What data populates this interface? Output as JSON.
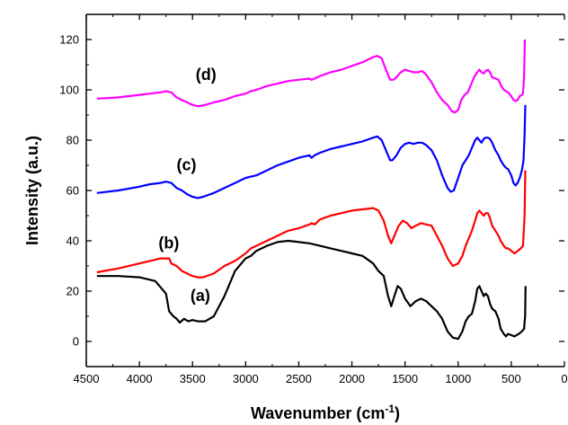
{
  "chart_data": {
    "type": "line",
    "title": "",
    "xlabel_main": "Wavenumber (cm",
    "xlabel_sup": "-1",
    "xlabel_close": ")",
    "ylabel": "Intensity (a.u.)",
    "xlim": [
      4500,
      0
    ],
    "ylim": [
      -10,
      130
    ],
    "x_ticks": [
      4500,
      4000,
      3500,
      3000,
      2500,
      2000,
      1500,
      1000,
      500,
      0
    ],
    "x_tick_labels": [
      "4500",
      "4000",
      "3500",
      "3000",
      "2500",
      "2000",
      "1500",
      "1000",
      "500",
      "0"
    ],
    "y_ticks": [
      0,
      20,
      40,
      60,
      80,
      100,
      120
    ],
    "y_tick_labels": [
      "0",
      "20",
      "40",
      "60",
      "80",
      "100",
      "120"
    ],
    "grid": false,
    "legend": "none",
    "series": [
      {
        "label": "(a)",
        "color": "#000000",
        "label_pos": [
          3520,
          16
        ],
        "points": [
          [
            4400,
            26
          ],
          [
            4200,
            26
          ],
          [
            4000,
            25.5
          ],
          [
            3850,
            24
          ],
          [
            3750,
            19
          ],
          [
            3720,
            12
          ],
          [
            3680,
            10
          ],
          [
            3650,
            9
          ],
          [
            3620,
            7.5
          ],
          [
            3580,
            9
          ],
          [
            3540,
            8
          ],
          [
            3500,
            8.5
          ],
          [
            3450,
            8
          ],
          [
            3380,
            8
          ],
          [
            3300,
            10
          ],
          [
            3200,
            18
          ],
          [
            3100,
            28
          ],
          [
            3000,
            33
          ],
          [
            2950,
            34
          ],
          [
            2900,
            36
          ],
          [
            2800,
            38
          ],
          [
            2700,
            39.5
          ],
          [
            2600,
            40
          ],
          [
            2500,
            39.5
          ],
          [
            2400,
            39
          ],
          [
            2300,
            38
          ],
          [
            2200,
            37
          ],
          [
            2100,
            36
          ],
          [
            2000,
            35
          ],
          [
            1900,
            34
          ],
          [
            1800,
            31
          ],
          [
            1750,
            28
          ],
          [
            1700,
            26
          ],
          [
            1660,
            18
          ],
          [
            1630,
            14
          ],
          [
            1600,
            18
          ],
          [
            1570,
            22
          ],
          [
            1540,
            21
          ],
          [
            1500,
            17
          ],
          [
            1450,
            14
          ],
          [
            1400,
            16
          ],
          [
            1350,
            17
          ],
          [
            1300,
            16
          ],
          [
            1250,
            14
          ],
          [
            1200,
            12
          ],
          [
            1150,
            9
          ],
          [
            1100,
            4
          ],
          [
            1050,
            1.5
          ],
          [
            1000,
            1
          ],
          [
            960,
            4
          ],
          [
            930,
            8
          ],
          [
            900,
            10
          ],
          [
            870,
            11
          ],
          [
            840,
            16
          ],
          [
            820,
            21
          ],
          [
            800,
            22
          ],
          [
            780,
            20
          ],
          [
            760,
            18
          ],
          [
            740,
            19
          ],
          [
            720,
            18
          ],
          [
            700,
            15
          ],
          [
            680,
            13
          ],
          [
            650,
            12
          ],
          [
            620,
            9
          ],
          [
            600,
            5
          ],
          [
            570,
            3
          ],
          [
            550,
            2
          ],
          [
            530,
            3
          ],
          [
            500,
            2.5
          ],
          [
            470,
            2
          ],
          [
            430,
            3
          ],
          [
            400,
            4
          ],
          [
            380,
            5
          ],
          [
            370,
            10
          ],
          [
            365,
            22
          ]
        ]
      },
      {
        "label": "(b)",
        "color": "#ff0000",
        "label_pos": [
          3820,
          37
        ],
        "points": [
          [
            4400,
            27.5
          ],
          [
            4200,
            29
          ],
          [
            4000,
            31
          ],
          [
            3900,
            32
          ],
          [
            3800,
            33
          ],
          [
            3720,
            33
          ],
          [
            3700,
            31
          ],
          [
            3650,
            30
          ],
          [
            3600,
            28
          ],
          [
            3500,
            26
          ],
          [
            3450,
            25.5
          ],
          [
            3400,
            25.5
          ],
          [
            3300,
            27
          ],
          [
            3200,
            30
          ],
          [
            3100,
            32
          ],
          [
            3000,
            35
          ],
          [
            2950,
            37
          ],
          [
            2900,
            38
          ],
          [
            2800,
            40
          ],
          [
            2700,
            42
          ],
          [
            2600,
            44
          ],
          [
            2500,
            45
          ],
          [
            2400,
            46.5
          ],
          [
            2380,
            47
          ],
          [
            2350,
            46.5
          ],
          [
            2300,
            48.5
          ],
          [
            2200,
            50
          ],
          [
            2100,
            51
          ],
          [
            2000,
            52
          ],
          [
            1900,
            52.5
          ],
          [
            1800,
            53
          ],
          [
            1750,
            52
          ],
          [
            1700,
            48
          ],
          [
            1660,
            42
          ],
          [
            1630,
            39
          ],
          [
            1600,
            42
          ],
          [
            1560,
            46
          ],
          [
            1520,
            48
          ],
          [
            1480,
            47
          ],
          [
            1440,
            45
          ],
          [
            1400,
            46
          ],
          [
            1350,
            47
          ],
          [
            1300,
            46.5
          ],
          [
            1250,
            46
          ],
          [
            1200,
            42
          ],
          [
            1150,
            38
          ],
          [
            1100,
            33
          ],
          [
            1050,
            30
          ],
          [
            1000,
            31
          ],
          [
            960,
            34
          ],
          [
            930,
            38
          ],
          [
            900,
            41
          ],
          [
            870,
            44
          ],
          [
            840,
            48
          ],
          [
            820,
            51
          ],
          [
            800,
            52
          ],
          [
            780,
            51
          ],
          [
            760,
            50
          ],
          [
            740,
            51
          ],
          [
            720,
            51
          ],
          [
            700,
            49
          ],
          [
            680,
            46
          ],
          [
            650,
            44
          ],
          [
            620,
            42
          ],
          [
            600,
            40
          ],
          [
            570,
            38
          ],
          [
            550,
            37
          ],
          [
            530,
            37
          ],
          [
            500,
            36
          ],
          [
            470,
            35
          ],
          [
            440,
            36
          ],
          [
            410,
            37
          ],
          [
            390,
            38
          ],
          [
            375,
            50
          ],
          [
            368,
            68
          ]
        ]
      },
      {
        "label": "(c)",
        "color": "#0000ff",
        "label_pos": [
          3650,
          68
        ],
        "points": [
          [
            4400,
            59
          ],
          [
            4200,
            60
          ],
          [
            4000,
            61.5
          ],
          [
            3900,
            62.5
          ],
          [
            3800,
            63
          ],
          [
            3750,
            63.5
          ],
          [
            3700,
            63
          ],
          [
            3650,
            61
          ],
          [
            3600,
            60
          ],
          [
            3550,
            58.5
          ],
          [
            3500,
            57.5
          ],
          [
            3450,
            57
          ],
          [
            3400,
            57.5
          ],
          [
            3300,
            59
          ],
          [
            3200,
            61
          ],
          [
            3100,
            63
          ],
          [
            3000,
            65
          ],
          [
            2950,
            65.5
          ],
          [
            2900,
            66
          ],
          [
            2800,
            68
          ],
          [
            2700,
            70
          ],
          [
            2600,
            71.5
          ],
          [
            2500,
            73
          ],
          [
            2400,
            74
          ],
          [
            2380,
            73
          ],
          [
            2350,
            74
          ],
          [
            2300,
            75
          ],
          [
            2200,
            76.5
          ],
          [
            2100,
            77.5
          ],
          [
            2000,
            78.5
          ],
          [
            1900,
            79.5
          ],
          [
            1800,
            81
          ],
          [
            1760,
            81.5
          ],
          [
            1720,
            80
          ],
          [
            1680,
            76
          ],
          [
            1640,
            72
          ],
          [
            1620,
            72
          ],
          [
            1580,
            74
          ],
          [
            1540,
            77
          ],
          [
            1500,
            78.5
          ],
          [
            1460,
            79
          ],
          [
            1420,
            78.5
          ],
          [
            1380,
            79
          ],
          [
            1340,
            79
          ],
          [
            1300,
            78
          ],
          [
            1250,
            76
          ],
          [
            1200,
            72
          ],
          [
            1150,
            66
          ],
          [
            1100,
            61
          ],
          [
            1070,
            59.5
          ],
          [
            1040,
            60
          ],
          [
            1000,
            65
          ],
          [
            960,
            70
          ],
          [
            930,
            72
          ],
          [
            900,
            74
          ],
          [
            870,
            77
          ],
          [
            840,
            80
          ],
          [
            820,
            81
          ],
          [
            800,
            80
          ],
          [
            780,
            79
          ],
          [
            760,
            80.5
          ],
          [
            740,
            81
          ],
          [
            720,
            81
          ],
          [
            700,
            80.5
          ],
          [
            680,
            79
          ],
          [
            650,
            76
          ],
          [
            620,
            74
          ],
          [
            600,
            72
          ],
          [
            570,
            70
          ],
          [
            550,
            69
          ],
          [
            530,
            68.5
          ],
          [
            500,
            66
          ],
          [
            480,
            63
          ],
          [
            460,
            62
          ],
          [
            440,
            63
          ],
          [
            420,
            65
          ],
          [
            400,
            68
          ],
          [
            385,
            72
          ],
          [
            375,
            82
          ],
          [
            368,
            94
          ]
        ]
      },
      {
        "label": "(d)",
        "color": "#ff00ff",
        "label_pos": [
          3470,
          104
        ],
        "points": [
          [
            4400,
            96.5
          ],
          [
            4200,
            97
          ],
          [
            4000,
            98
          ],
          [
            3900,
            98.5
          ],
          [
            3800,
            99
          ],
          [
            3750,
            99.5
          ],
          [
            3700,
            99
          ],
          [
            3650,
            97
          ],
          [
            3600,
            96
          ],
          [
            3550,
            95
          ],
          [
            3500,
            94
          ],
          [
            3450,
            93.5
          ],
          [
            3400,
            93.8
          ],
          [
            3300,
            95
          ],
          [
            3200,
            96
          ],
          [
            3100,
            97.5
          ],
          [
            3000,
            98.5
          ],
          [
            2950,
            99.5
          ],
          [
            2900,
            100
          ],
          [
            2800,
            101.5
          ],
          [
            2700,
            102.5
          ],
          [
            2600,
            103.5
          ],
          [
            2500,
            104
          ],
          [
            2400,
            104.5
          ],
          [
            2380,
            104
          ],
          [
            2350,
            104.5
          ],
          [
            2300,
            105.5
          ],
          [
            2200,
            107
          ],
          [
            2100,
            108
          ],
          [
            2000,
            109.5
          ],
          [
            1900,
            111
          ],
          [
            1800,
            113
          ],
          [
            1760,
            113.5
          ],
          [
            1720,
            112.5
          ],
          [
            1680,
            108
          ],
          [
            1640,
            104
          ],
          [
            1610,
            104
          ],
          [
            1580,
            105
          ],
          [
            1540,
            107
          ],
          [
            1500,
            108
          ],
          [
            1460,
            107.5
          ],
          [
            1420,
            107
          ],
          [
            1380,
            107
          ],
          [
            1340,
            107.5
          ],
          [
            1300,
            106
          ],
          [
            1250,
            103
          ],
          [
            1200,
            99
          ],
          [
            1150,
            96
          ],
          [
            1100,
            94
          ],
          [
            1060,
            91.5
          ],
          [
            1030,
            91
          ],
          [
            1000,
            92
          ],
          [
            970,
            96
          ],
          [
            940,
            98
          ],
          [
            910,
            99
          ],
          [
            880,
            102
          ],
          [
            850,
            105
          ],
          [
            820,
            107
          ],
          [
            800,
            108
          ],
          [
            780,
            107
          ],
          [
            760,
            106.5
          ],
          [
            740,
            107.5
          ],
          [
            720,
            108
          ],
          [
            700,
            107
          ],
          [
            680,
            105
          ],
          [
            650,
            104.5
          ],
          [
            620,
            104
          ],
          [
            600,
            102
          ],
          [
            570,
            100
          ],
          [
            550,
            99.5
          ],
          [
            530,
            99
          ],
          [
            500,
            97.5
          ],
          [
            480,
            96
          ],
          [
            460,
            95.5
          ],
          [
            440,
            96
          ],
          [
            420,
            97.5
          ],
          [
            400,
            98
          ],
          [
            390,
            98.5
          ],
          [
            380,
            105
          ],
          [
            372,
            120
          ]
        ]
      }
    ]
  }
}
